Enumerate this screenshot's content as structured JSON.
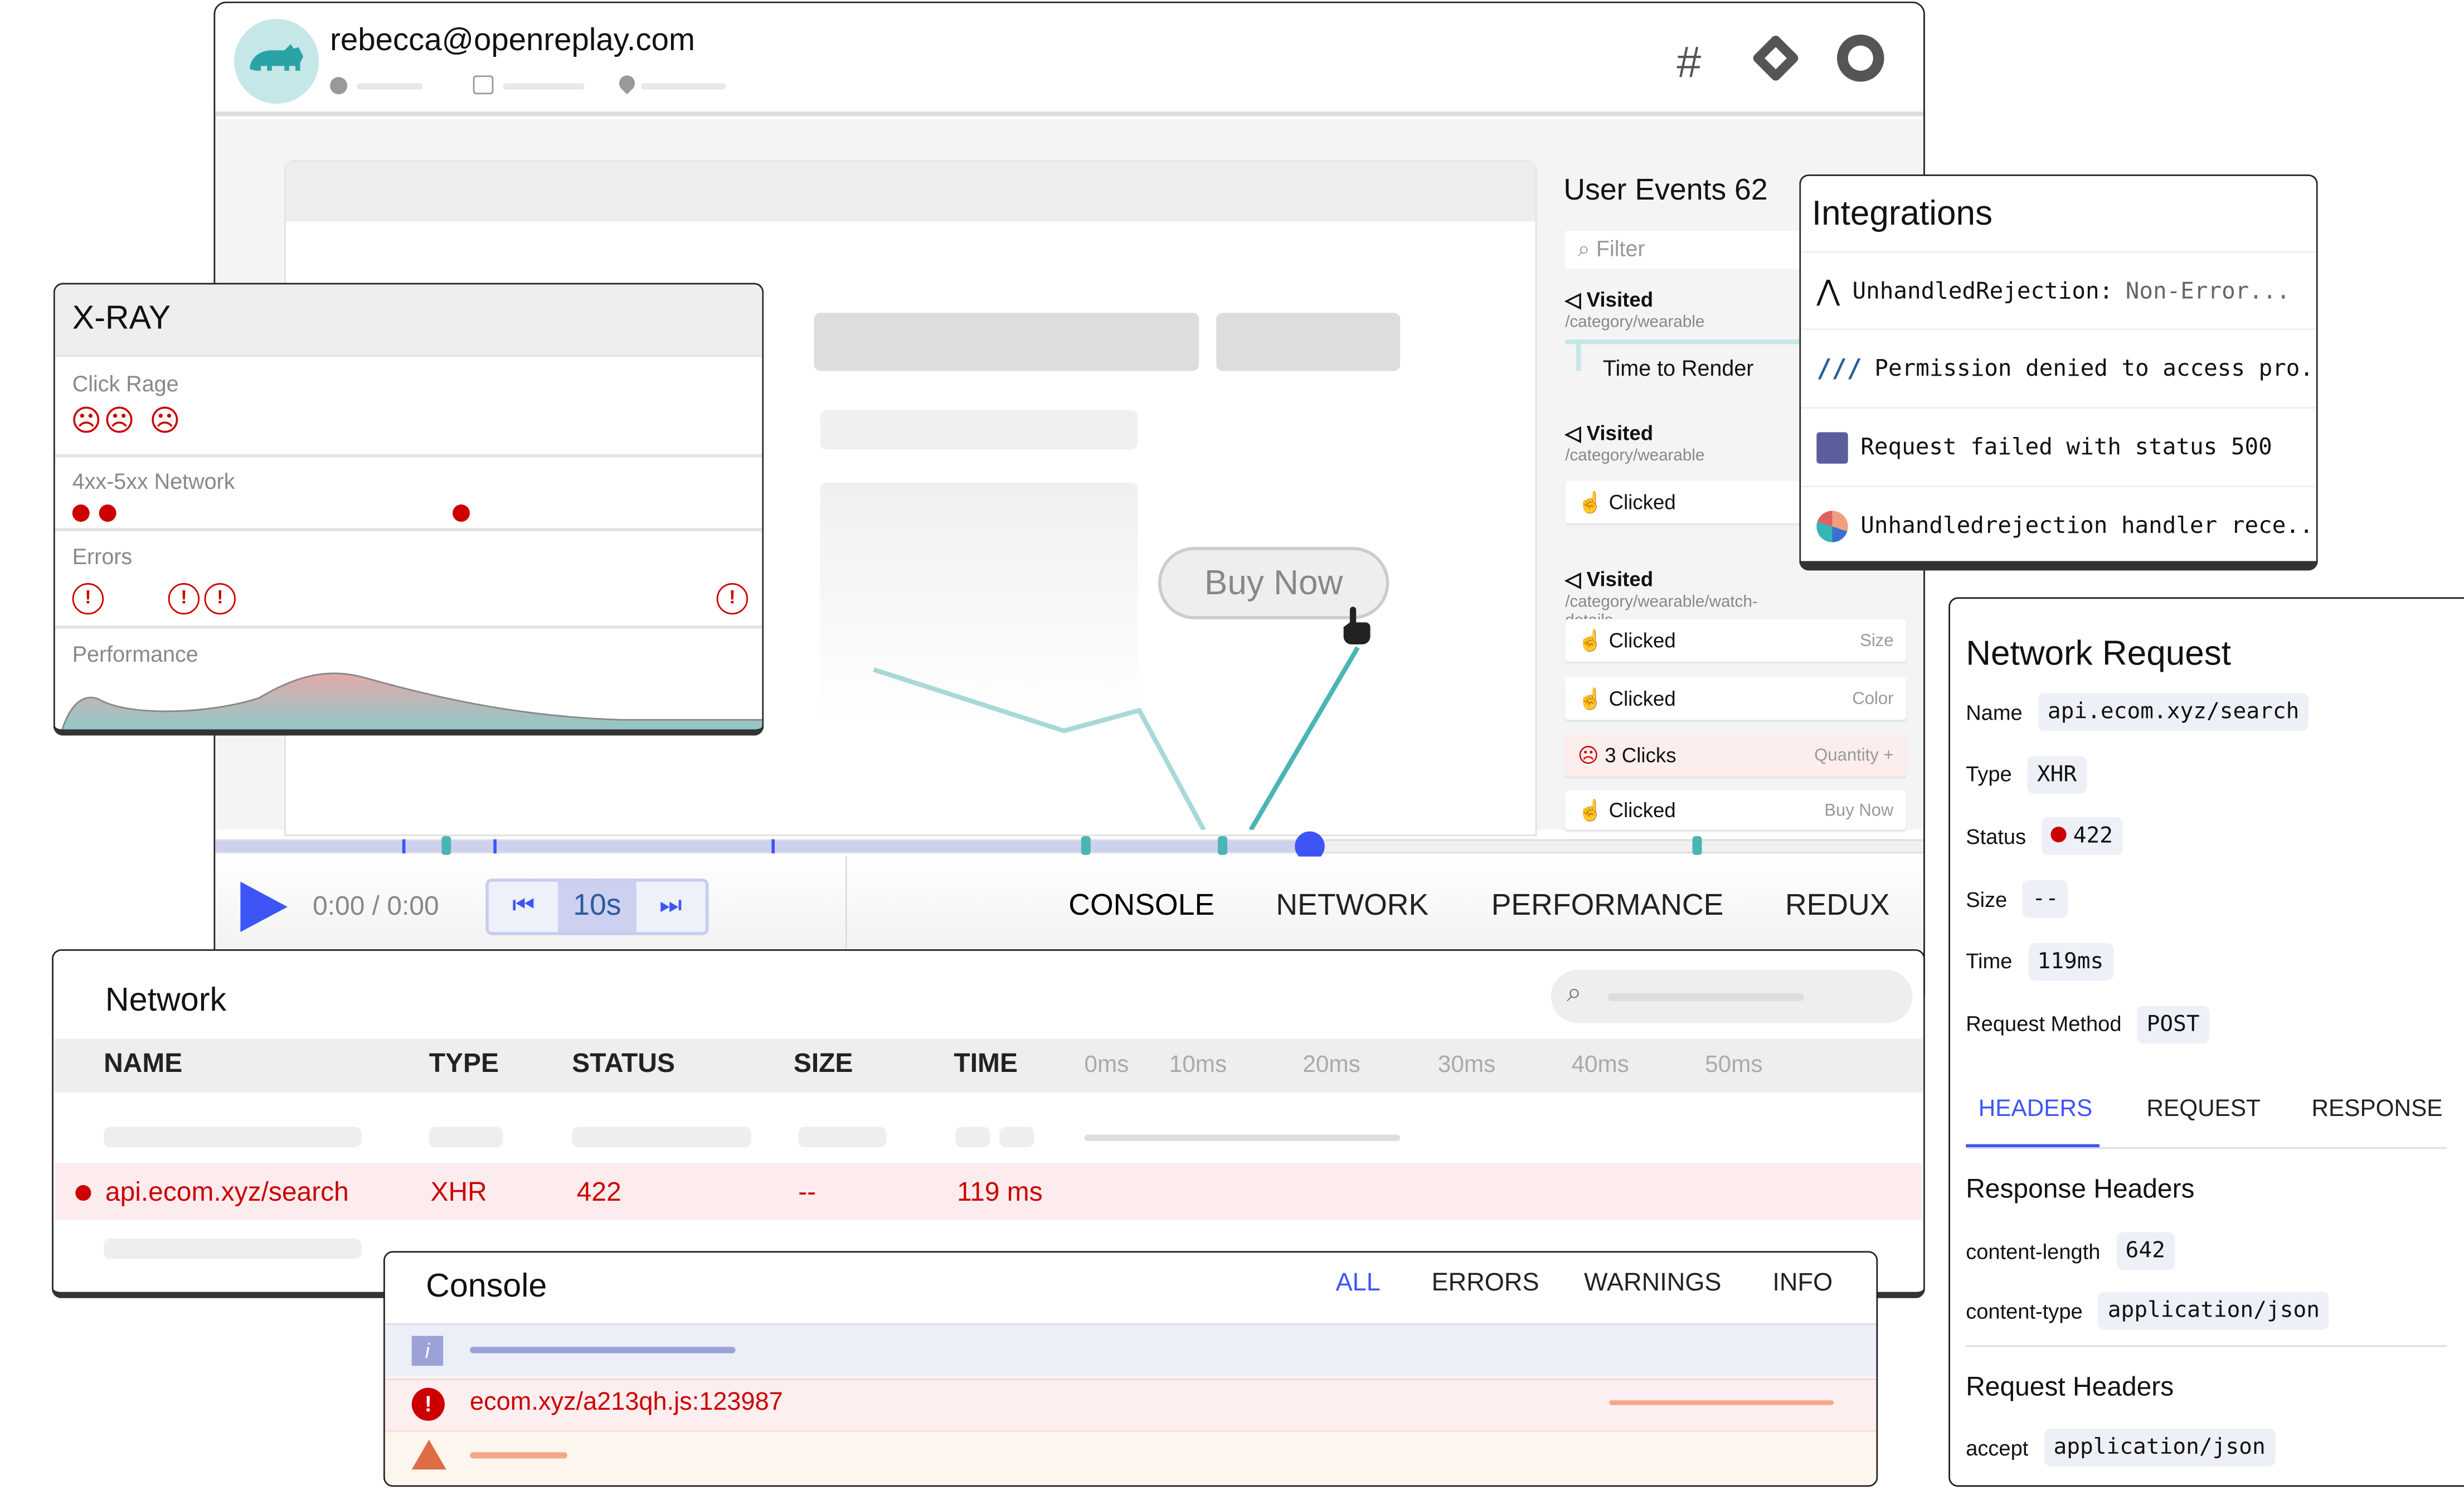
{
  "header": {
    "user_email": "rebecca@openreplay.com",
    "integration_icons": [
      "slack-icon",
      "jira-icon",
      "github-icon"
    ]
  },
  "replay": {
    "buy_now_label": "Buy Now"
  },
  "user_events": {
    "title": "User Events 62",
    "filter_placeholder": "Filter",
    "items": [
      {
        "type": "Visited",
        "path": "/category/wearable"
      },
      {
        "type": "Time to Render"
      },
      {
        "type": "Visited",
        "path": "/category/wearable"
      },
      {
        "type": "Clicked",
        "label": ""
      },
      {
        "type": "Visited",
        "path": "/category/wearable/watch-details"
      },
      {
        "type": "Clicked",
        "label": "Size"
      },
      {
        "type": "Clicked",
        "label": "Color"
      },
      {
        "type": "3 Clicks",
        "label": "Quantity +"
      },
      {
        "type": "Clicked",
        "label": "Buy Now"
      }
    ]
  },
  "integrations": {
    "title": "Integrations",
    "items": [
      {
        "icon": "sentry-icon",
        "text": "UnhandledRejection:",
        "detail": "Non-Error..."
      },
      {
        "icon": "bugsnag-icon",
        "text": "Permission denied to access pro..."
      },
      {
        "icon": "datadog-icon",
        "text": "Request failed with status 500"
      },
      {
        "icon": "elastic-icon",
        "text": "Unhandledrejection handler rece.."
      }
    ]
  },
  "network_request": {
    "title": "Network Request",
    "fields": [
      {
        "label": "Name",
        "value": "api.ecom.xyz/search"
      },
      {
        "label": "Type",
        "value": "XHR"
      },
      {
        "label": "Status",
        "value": "422"
      },
      {
        "label": "Size",
        "value": "--"
      },
      {
        "label": "Time",
        "value": "119ms"
      },
      {
        "label": "Request Method",
        "value": "POST"
      }
    ],
    "tabs": [
      "HEADERS",
      "REQUEST",
      "RESPONSE"
    ],
    "active_tab": "HEADERS",
    "response_headers_title": "Response Headers",
    "response_headers": [
      {
        "key": "content-length",
        "value": "642"
      },
      {
        "key": "content-type",
        "value": "application/json"
      }
    ],
    "request_headers_title": "Request Headers",
    "request_headers": [
      {
        "key": "accept",
        "value": "application/json"
      }
    ]
  },
  "xray": {
    "title": "X-RAY",
    "rows": [
      "Click Rage",
      "4xx-5xx Network",
      "Errors",
      "Performance"
    ]
  },
  "player": {
    "time": "0:00 / 0:00",
    "skip_label": "10s",
    "progress_percent": 64,
    "tabs": [
      "CONSOLE",
      "NETWORK",
      "PERFORMANCE",
      "REDUX"
    ]
  },
  "network": {
    "title": "Network",
    "columns": [
      "NAME",
      "TYPE",
      "STATUS",
      "SIZE",
      "TIME"
    ],
    "ticks": [
      "0ms",
      "10ms",
      "20ms",
      "30ms",
      "40ms",
      "50ms"
    ],
    "row": {
      "name": "api.ecom.xyz/search",
      "type": "XHR",
      "status": "422",
      "size": "--",
      "time": "119 ms"
    }
  },
  "console": {
    "title": "Console",
    "tabs": [
      "ALL",
      "ERRORS",
      "WARNINGS",
      "INFO"
    ],
    "active_tab": "ALL",
    "error_text": "ecom.xyz/a213qh.js:123987"
  },
  "colors": {
    "accent": "#3d55f5",
    "error": "#cc0000",
    "teal": "#4bb5b5"
  }
}
